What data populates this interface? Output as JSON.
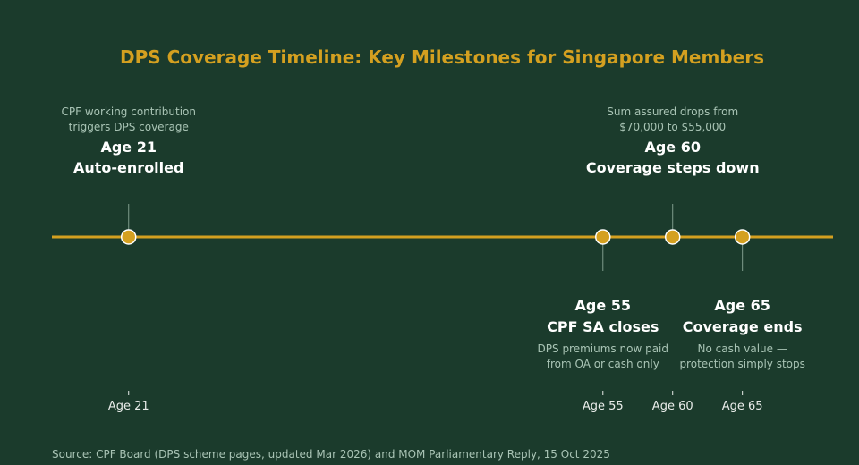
{
  "title": "DPS Coverage Timeline: Key Milestones for Singapore Members",
  "source": "Source: CPF Board (DPS scheme pages, updated Mar 2026) and MOM Parliamentary Reply, 15 Oct 2025",
  "colors": {
    "background": "#1b3b2c",
    "accent": "#d4a020",
    "heading_text": "#ffffff",
    "note_text": "#a9c4b5",
    "connector": "#7f9c8c"
  },
  "axis": {
    "min_age": 15.5,
    "max_age": 71.5,
    "ticks": [
      {
        "age": 21,
        "label": "Age 21"
      },
      {
        "age": 55,
        "label": "Age 55"
      },
      {
        "age": 60,
        "label": "Age 60"
      },
      {
        "age": 65,
        "label": "Age 65"
      }
    ]
  },
  "milestones": [
    {
      "id": "age-21",
      "age": 21,
      "side": "above",
      "line1": "Age 21",
      "line2": "Auto-enrolled",
      "note": [
        "CPF working contribution",
        "triggers DPS coverage"
      ]
    },
    {
      "id": "age-55",
      "age": 55,
      "side": "below",
      "line1": "Age 55",
      "line2": "CPF SA closes",
      "note": [
        "DPS premiums now paid",
        "from OA or cash only"
      ]
    },
    {
      "id": "age-60",
      "age": 60,
      "side": "above",
      "line1": "Age 60",
      "line2": "Coverage steps down",
      "note": [
        "Sum assured drops from",
        "$70,000 to $55,000"
      ]
    },
    {
      "id": "age-65",
      "age": 65,
      "side": "below",
      "line1": "Age 65",
      "line2": "Coverage ends",
      "note": [
        "No cash value —",
        "protection simply stops"
      ]
    }
  ]
}
